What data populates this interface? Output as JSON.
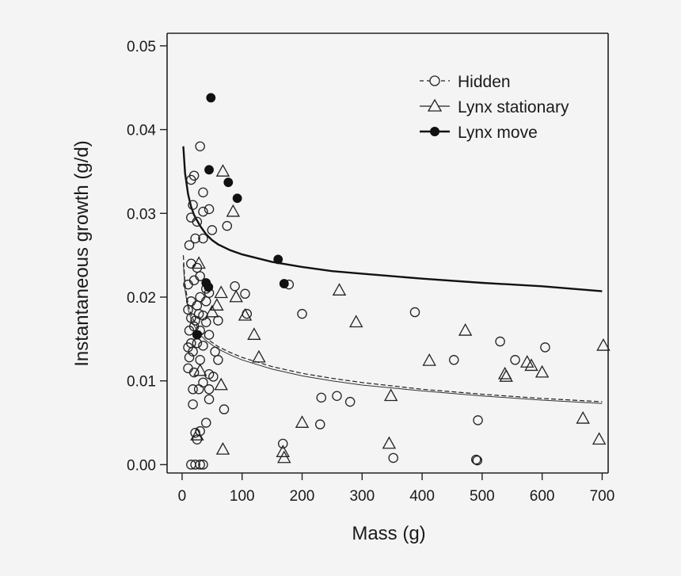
{
  "chart_data": {
    "type": "scatter",
    "title": "",
    "xlabel": "Mass (g)",
    "ylabel": "Instantaneous growth (g/d)",
    "xlim": [
      -25,
      710
    ],
    "ylim": [
      -0.001,
      0.0515
    ],
    "x_ticks": [
      0,
      100,
      200,
      300,
      400,
      500,
      600,
      700
    ],
    "x_tick_labels": [
      "0",
      "100",
      "200",
      "300",
      "400",
      "500",
      "600",
      "700"
    ],
    "y_ticks": [
      0.0,
      0.01,
      0.02,
      0.03,
      0.04,
      0.05
    ],
    "y_tick_labels": [
      "0.00",
      "0.01",
      "0.02",
      "0.03",
      "0.04",
      "0.05"
    ],
    "legend": {
      "position": "top-right",
      "entries": [
        {
          "label": "Hidden",
          "marker": "open-circle",
          "line": "dashed"
        },
        {
          "label": "Lynx stationary",
          "marker": "open-triangle",
          "line": "thin-solid"
        },
        {
          "label": "Lynx move",
          "marker": "filled-circle",
          "line": "thick-solid"
        }
      ]
    },
    "series": [
      {
        "name": "Hidden",
        "marker": "open-circle",
        "points": [
          [
            30,
            0.038
          ],
          [
            20,
            0.0345
          ],
          [
            15,
            0.034
          ],
          [
            35,
            0.0325
          ],
          [
            45,
            0.0305
          ],
          [
            18,
            0.031
          ],
          [
            35,
            0.0302
          ],
          [
            15,
            0.0295
          ],
          [
            25,
            0.029
          ],
          [
            75,
            0.0285
          ],
          [
            50,
            0.028
          ],
          [
            22,
            0.027
          ],
          [
            35,
            0.027
          ],
          [
            12,
            0.0262
          ],
          [
            15,
            0.024
          ],
          [
            25,
            0.0235
          ],
          [
            30,
            0.0225
          ],
          [
            10,
            0.0215
          ],
          [
            20,
            0.022
          ],
          [
            40,
            0.021
          ],
          [
            45,
            0.0205
          ],
          [
            30,
            0.02
          ],
          [
            15,
            0.0195
          ],
          [
            25,
            0.019
          ],
          [
            40,
            0.0195
          ],
          [
            10,
            0.0185
          ],
          [
            28,
            0.018
          ],
          [
            35,
            0.0178
          ],
          [
            15,
            0.0175
          ],
          [
            22,
            0.0172
          ],
          [
            40,
            0.017
          ],
          [
            60,
            0.0172
          ],
          [
            20,
            0.0165
          ],
          [
            12,
            0.016
          ],
          [
            30,
            0.016
          ],
          [
            45,
            0.0155
          ],
          [
            15,
            0.0145
          ],
          [
            25,
            0.0145
          ],
          [
            10,
            0.014
          ],
          [
            35,
            0.0142
          ],
          [
            18,
            0.0135
          ],
          [
            55,
            0.0135
          ],
          [
            12,
            0.0128
          ],
          [
            30,
            0.0125
          ],
          [
            60,
            0.0125
          ],
          [
            10,
            0.0115
          ],
          [
            20,
            0.011
          ],
          [
            45,
            0.0108
          ],
          [
            52,
            0.0105
          ],
          [
            35,
            0.0098
          ],
          [
            18,
            0.009
          ],
          [
            28,
            0.009
          ],
          [
            45,
            0.009
          ],
          [
            45,
            0.0078
          ],
          [
            18,
            0.0072
          ],
          [
            70,
            0.0066
          ],
          [
            40,
            0.005
          ],
          [
            30,
            0.004
          ],
          [
            22,
            0.0038
          ],
          [
            25,
            0.003
          ],
          [
            15,
            0.0
          ],
          [
            22,
            0.0
          ],
          [
            30,
            0.0
          ],
          [
            35,
            0.0
          ],
          [
            88,
            0.0213
          ],
          [
            105,
            0.0204
          ],
          [
            108,
            0.018
          ],
          [
            178,
            0.0215
          ],
          [
            200,
            0.018
          ],
          [
            232,
            0.008
          ],
          [
            230,
            0.0048
          ],
          [
            258,
            0.0082
          ],
          [
            280,
            0.0075
          ],
          [
            168,
            0.0025
          ],
          [
            352,
            0.0008
          ],
          [
            388,
            0.0182
          ],
          [
            453,
            0.0125
          ],
          [
            493,
            0.0053
          ],
          [
            490,
            0.0006
          ],
          [
            492,
            0.0005
          ],
          [
            530,
            0.0147
          ],
          [
            555,
            0.0125
          ],
          [
            605,
            0.014
          ]
        ]
      },
      {
        "name": "Lynx stationary",
        "marker": "open-triangle",
        "points": [
          [
            68,
            0.035
          ],
          [
            85,
            0.0302
          ],
          [
            28,
            0.024
          ],
          [
            65,
            0.0205
          ],
          [
            90,
            0.02
          ],
          [
            58,
            0.019
          ],
          [
            50,
            0.0182
          ],
          [
            105,
            0.0178
          ],
          [
            120,
            0.0155
          ],
          [
            128,
            0.0128
          ],
          [
            30,
            0.0112
          ],
          [
            65,
            0.0095
          ],
          [
            200,
            0.005
          ],
          [
            68,
            0.0018
          ],
          [
            168,
            0.0015
          ],
          [
            170,
            0.0008
          ],
          [
            262,
            0.0208
          ],
          [
            290,
            0.017
          ],
          [
            348,
            0.0082
          ],
          [
            345,
            0.0025
          ],
          [
            412,
            0.0124
          ],
          [
            472,
            0.016
          ],
          [
            538,
            0.0108
          ],
          [
            540,
            0.0105
          ],
          [
            575,
            0.0122
          ],
          [
            582,
            0.0118
          ],
          [
            600,
            0.011
          ],
          [
            668,
            0.0055
          ],
          [
            695,
            0.003
          ],
          [
            702,
            0.0142
          ],
          [
            25,
            0.0035
          ]
        ]
      },
      {
        "name": "Lynx move",
        "marker": "filled-circle",
        "points": [
          [
            48,
            0.0438
          ],
          [
            45,
            0.0352
          ],
          [
            77,
            0.0337
          ],
          [
            92,
            0.0318
          ],
          [
            160,
            0.0245
          ],
          [
            170,
            0.0216
          ],
          [
            40,
            0.0217
          ],
          [
            44,
            0.0212
          ],
          [
            25,
            0.0155
          ]
        ]
      }
    ],
    "fit_lines": [
      {
        "name": "Lynx move",
        "style": "thick-solid",
        "x": [
          2,
          5,
          10,
          15,
          20,
          30,
          40,
          50,
          60,
          80,
          100,
          150,
          200,
          250,
          300,
          400,
          500,
          600,
          700
        ],
        "y": [
          0.038,
          0.0348,
          0.0323,
          0.0308,
          0.0298,
          0.0285,
          0.0275,
          0.0268,
          0.0263,
          0.0256,
          0.0251,
          0.0242,
          0.0236,
          0.0231,
          0.0228,
          0.0222,
          0.0217,
          0.0213,
          0.0207
        ]
      },
      {
        "name": "Hidden",
        "style": "dashed",
        "x": [
          2,
          5,
          10,
          15,
          20,
          30,
          40,
          50,
          60,
          80,
          100,
          150,
          200,
          250,
          300,
          400,
          500,
          600,
          700
        ],
        "y": [
          0.025,
          0.0215,
          0.0192,
          0.0179,
          0.0171,
          0.0159,
          0.0151,
          0.0146,
          0.0141,
          0.0134,
          0.0128,
          0.0117,
          0.0109,
          0.0103,
          0.0098,
          0.009,
          0.0084,
          0.0079,
          0.0075
        ]
      },
      {
        "name": "Lynx stationary",
        "style": "thin-solid",
        "x": [
          2,
          5,
          10,
          15,
          20,
          30,
          40,
          50,
          60,
          80,
          100,
          150,
          200,
          250,
          300,
          400,
          500,
          600,
          700
        ],
        "y": [
          0.024,
          0.0208,
          0.0186,
          0.0174,
          0.0166,
          0.0155,
          0.0148,
          0.0143,
          0.0138,
          0.0131,
          0.0125,
          0.0114,
          0.0106,
          0.01,
          0.0095,
          0.0088,
          0.0082,
          0.0077,
          0.0073
        ]
      }
    ]
  }
}
